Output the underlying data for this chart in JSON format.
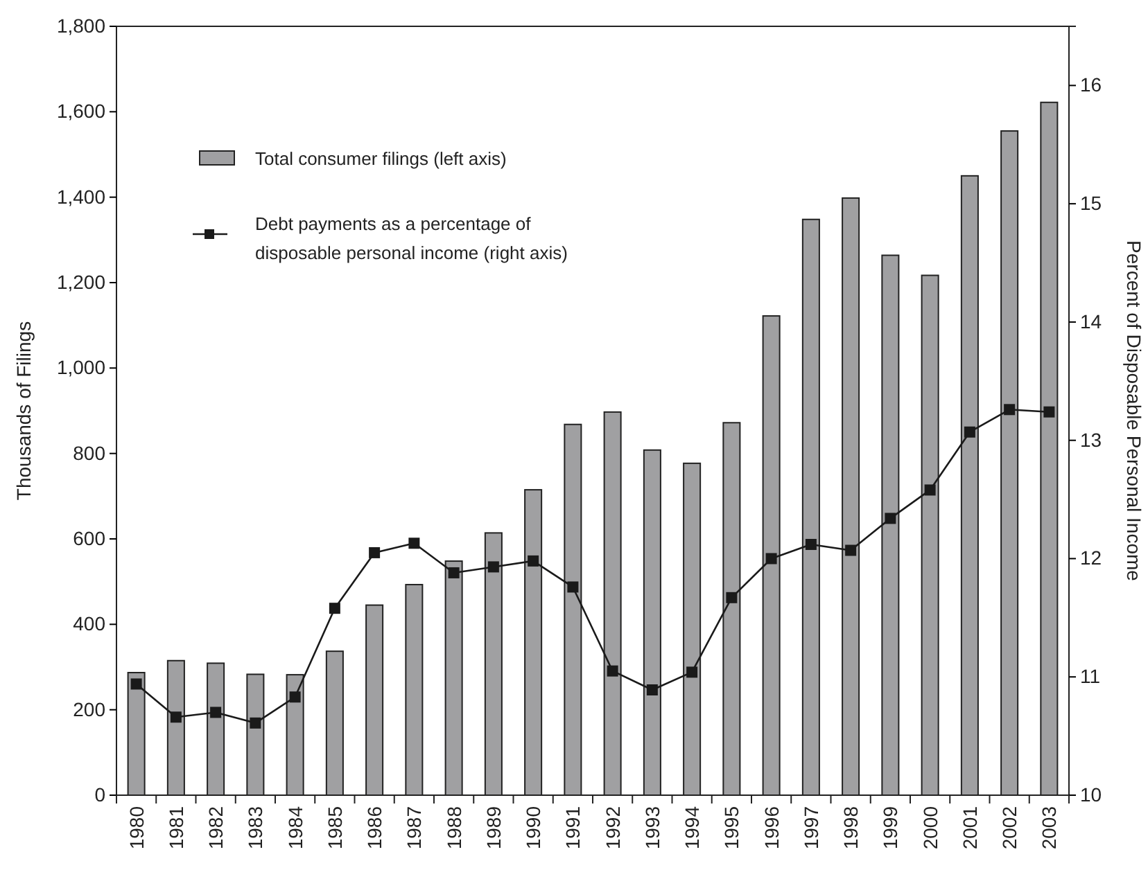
{
  "chart_data": {
    "type": "bar",
    "ylabel": "Thousands of Filings",
    "y2label": "Percent of Disposable Personal Income",
    "categories": [
      "1980",
      "1981",
      "1982",
      "1983",
      "1984",
      "1985",
      "1986",
      "1987",
      "1988",
      "1989",
      "1990",
      "1991",
      "1992",
      "1993",
      "1994",
      "1995",
      "1996",
      "1997",
      "1998",
      "1999",
      "2000",
      "2001",
      "2002",
      "2003"
    ],
    "series": [
      {
        "name": "Total consumer filings (left axis)",
        "color": "#a0a0a2",
        "values": [
          287,
          315,
          309,
          283,
          282,
          337,
          445,
          493,
          548,
          614,
          715,
          868,
          897,
          808,
          777,
          872,
          1122,
          1348,
          1398,
          1264,
          1217,
          1450,
          1555,
          1622
        ]
      },
      {
        "name": "Debt payments as a percentage of disposable personal income (right axis)",
        "type": "line",
        "axis": "y2",
        "color": "#1a1a1a",
        "marker": "square",
        "values": [
          10.94,
          10.66,
          10.7,
          10.61,
          10.83,
          11.58,
          12.05,
          12.13,
          11.88,
          11.93,
          11.98,
          11.76,
          11.05,
          10.89,
          11.04,
          11.67,
          12,
          12.12,
          12.07,
          12.34,
          12.58,
          13.07,
          13.26,
          13.24
        ]
      }
    ],
    "ylim": [
      0,
      1800
    ],
    "yticks": [
      {
        "value": 0,
        "label": "0"
      },
      {
        "value": 200,
        "label": "200"
      },
      {
        "value": 400,
        "label": "400"
      },
      {
        "value": 600,
        "label": "600"
      },
      {
        "value": 800,
        "label": "800"
      },
      {
        "value": 1000,
        "label": "1,000"
      },
      {
        "value": 1200,
        "label": "1,200"
      },
      {
        "value": 1400,
        "label": "1,400"
      },
      {
        "value": 1600,
        "label": "1,600"
      },
      {
        "value": 1800,
        "label": "1,800"
      }
    ],
    "y2lim": [
      10,
      16.5
    ],
    "y2ticks": [
      10,
      11,
      12,
      13,
      14,
      15,
      16
    ],
    "legend": "top left",
    "grid": false
  }
}
